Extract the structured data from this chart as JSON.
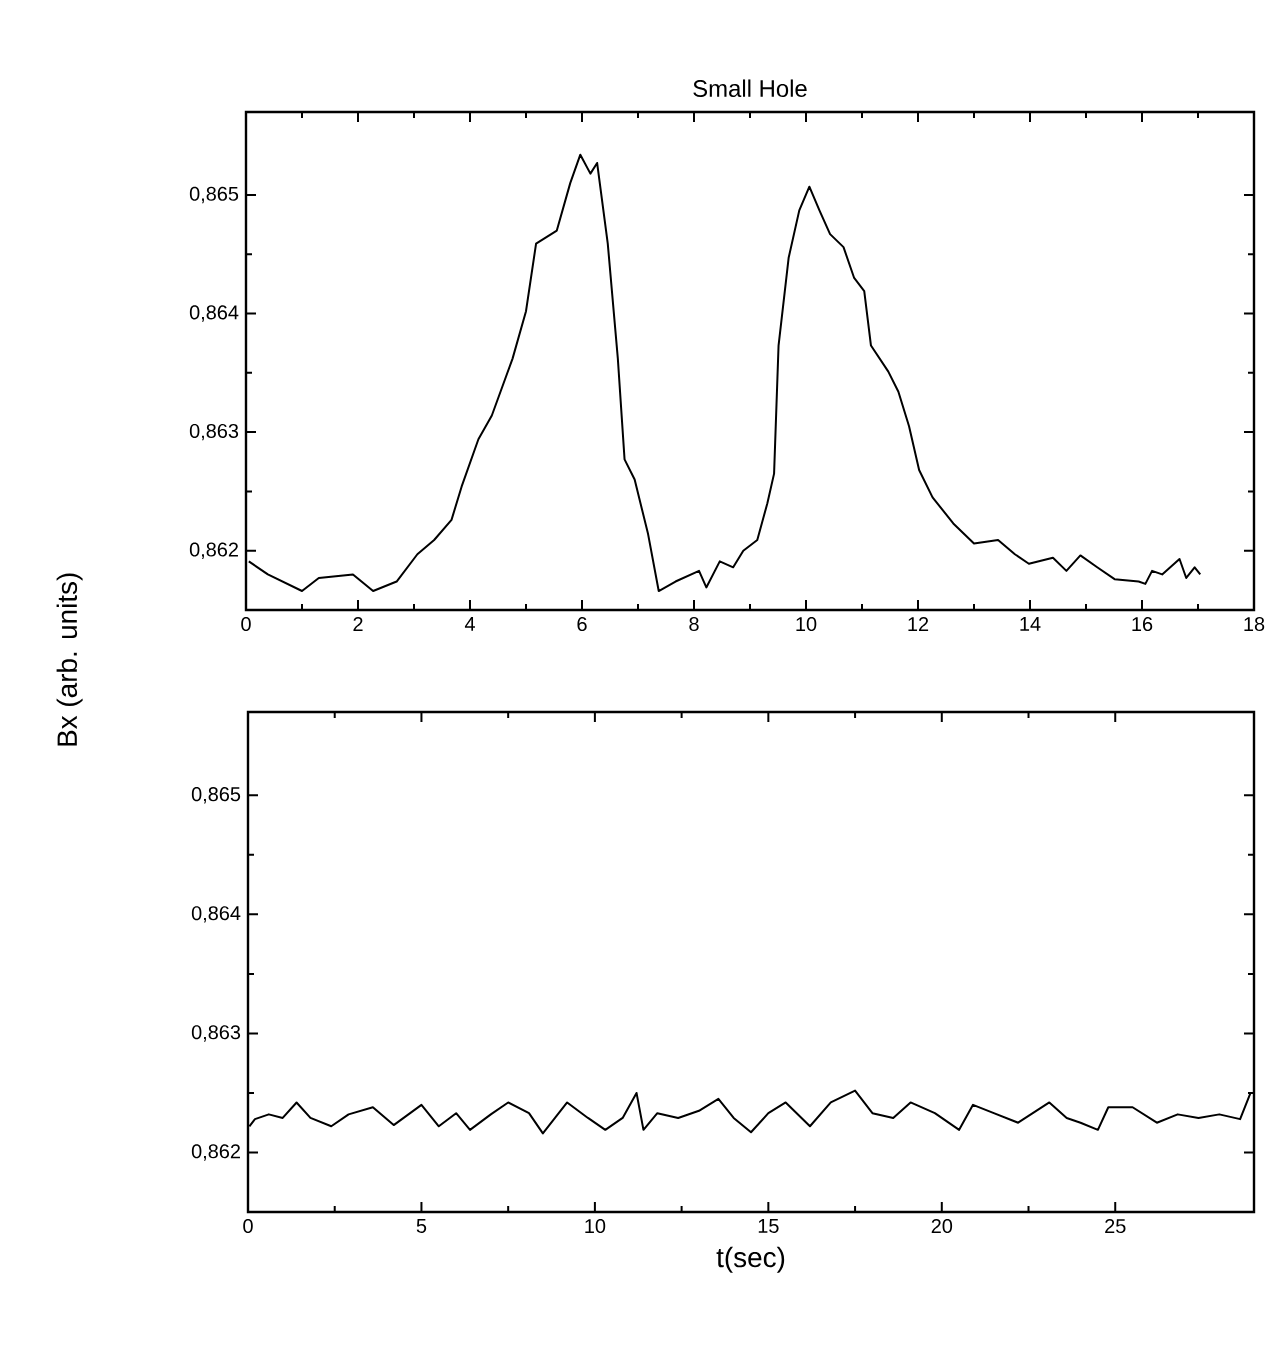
{
  "chart_data": [
    {
      "type": "line",
      "title": "Small Hole",
      "ylabel": "Bx (arb. units)",
      "color": "#000000",
      "x": [
        0.05,
        0.39,
        1.0,
        1.3,
        1.91,
        2.27,
        2.69,
        3.06,
        3.36,
        3.67,
        3.85,
        4.15,
        4.39,
        4.76,
        5.0,
        5.18,
        5.55,
        5.79,
        5.97,
        6.15,
        6.27,
        6.46,
        6.64,
        6.76,
        6.94,
        7.18,
        7.37,
        7.67,
        8.09,
        8.22,
        8.46,
        8.7,
        8.88,
        9.13,
        9.31,
        9.43,
        9.51,
        9.69,
        9.88,
        10.06,
        10.24,
        10.43,
        10.67,
        10.86,
        11.04,
        11.16,
        11.47,
        11.65,
        11.84,
        12.02,
        12.26,
        12.63,
        13.0,
        13.43,
        13.73,
        13.98,
        14.41,
        14.65,
        14.9,
        15.2,
        15.51,
        15.94,
        16.06,
        16.18,
        16.36,
        16.67,
        16.79,
        16.94,
        17.04
      ],
      "values": [
        0.86191,
        0.8618,
        0.86166,
        0.86177,
        0.8618,
        0.86166,
        0.86174,
        0.86197,
        0.86209,
        0.86226,
        0.86254,
        0.86294,
        0.86314,
        0.86362,
        0.86402,
        0.86459,
        0.8647,
        0.8651,
        0.86534,
        0.86518,
        0.86527,
        0.86459,
        0.86362,
        0.86277,
        0.8626,
        0.86214,
        0.86166,
        0.86174,
        0.86183,
        0.86169,
        0.86191,
        0.86186,
        0.862,
        0.86209,
        0.8624,
        0.86265,
        0.86373,
        0.86447,
        0.86487,
        0.86507,
        0.86487,
        0.86467,
        0.86456,
        0.8643,
        0.86419,
        0.86373,
        0.86351,
        0.86334,
        0.86305,
        0.86268,
        0.86245,
        0.86223,
        0.86206,
        0.86209,
        0.86197,
        0.86189,
        0.86194,
        0.86183,
        0.86196,
        0.86186,
        0.86176,
        0.86174,
        0.86172,
        0.86183,
        0.8618,
        0.86193,
        0.86177,
        0.86186,
        0.8618
      ],
      "xlim": [
        0,
        18
      ],
      "ylim": [
        0.8615,
        0.8657
      ],
      "xticks": [
        0,
        2,
        4,
        6,
        8,
        10,
        12,
        14,
        16,
        18
      ],
      "yticks": [
        {
          "value": 0.862,
          "label": "0,862"
        },
        {
          "value": 0.863,
          "label": "0,863"
        },
        {
          "value": 0.864,
          "label": "0,864"
        },
        {
          "value": 0.865,
          "label": "0,865"
        }
      ]
    },
    {
      "type": "line",
      "xlabel": "t(sec)",
      "color": "#000000",
      "x": [
        0.04,
        0.2,
        0.6,
        1.0,
        1.4,
        1.8,
        2.4,
        2.9,
        3.6,
        4.2,
        5.0,
        5.5,
        6.0,
        6.4,
        7.0,
        7.5,
        8.1,
        8.5,
        9.2,
        9.8,
        10.3,
        10.8,
        11.2,
        11.4,
        11.8,
        12.4,
        13.0,
        13.56,
        14.0,
        14.5,
        15.0,
        15.5,
        16.2,
        16.8,
        17.5,
        18.0,
        18.6,
        19.1,
        19.8,
        20.5,
        20.9,
        21.5,
        22.2,
        23.1,
        23.6,
        24.0,
        24.5,
        24.8,
        25.5,
        26.2,
        26.8,
        27.4,
        28.0,
        28.6,
        28.9
      ],
      "values": [
        0.86222,
        0.86228,
        0.86232,
        0.86229,
        0.86242,
        0.86229,
        0.86222,
        0.86232,
        0.86238,
        0.86223,
        0.8624,
        0.86222,
        0.86233,
        0.86219,
        0.86232,
        0.86242,
        0.86233,
        0.86216,
        0.86242,
        0.86229,
        0.86219,
        0.86229,
        0.8625,
        0.86219,
        0.86233,
        0.86229,
        0.86235,
        0.86245,
        0.86229,
        0.86217,
        0.86233,
        0.86242,
        0.86222,
        0.86242,
        0.86252,
        0.86233,
        0.86229,
        0.86242,
        0.86233,
        0.86219,
        0.8624,
        0.86233,
        0.86225,
        0.86242,
        0.86229,
        0.86225,
        0.86219,
        0.86238,
        0.86238,
        0.86225,
        0.86232,
        0.86229,
        0.86232,
        0.86228,
        0.8625
      ],
      "xlim": [
        0,
        29
      ],
      "ylim": [
        0.8615,
        0.8657
      ],
      "xticks": [
        0,
        5,
        10,
        15,
        20,
        25
      ],
      "yticks": [
        {
          "value": 0.862,
          "label": "0,862"
        },
        {
          "value": 0.863,
          "label": "0,863"
        },
        {
          "value": 0.864,
          "label": "0,864"
        },
        {
          "value": 0.865,
          "label": "0,865"
        }
      ]
    }
  ]
}
